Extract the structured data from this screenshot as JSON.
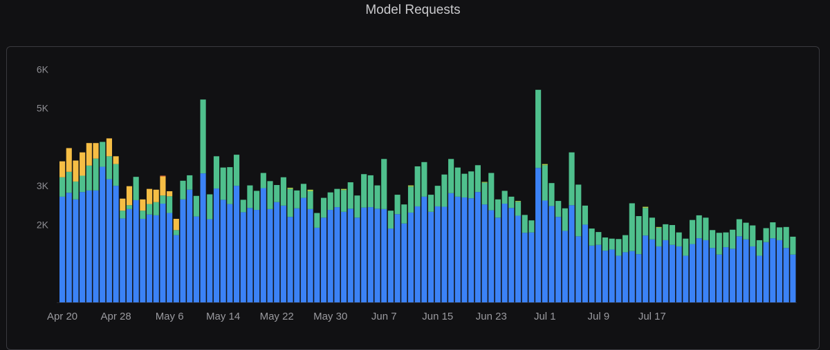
{
  "chart_data": {
    "type": "bar",
    "stacked": true,
    "title": "Model Requests",
    "ylim": [
      0,
      6200
    ],
    "yticks": [
      {
        "value": 2000,
        "label": "2K"
      },
      {
        "value": 3000,
        "label": "3K"
      },
      {
        "value": 5000,
        "label": "5K"
      },
      {
        "value": 6000,
        "label": "6K"
      }
    ],
    "xticks": [
      {
        "index": 0,
        "label": "Apr 20"
      },
      {
        "index": 8,
        "label": "Apr 28"
      },
      {
        "index": 16,
        "label": "May 6"
      },
      {
        "index": 24,
        "label": "May 14"
      },
      {
        "index": 32,
        "label": "May 22"
      },
      {
        "index": 40,
        "label": "May 30"
      },
      {
        "index": 48,
        "label": "Jun 7"
      },
      {
        "index": 56,
        "label": "Jun 15"
      },
      {
        "index": 64,
        "label": "Jun 23"
      },
      {
        "index": 72,
        "label": "Jul 1"
      },
      {
        "index": 80,
        "label": "Jul 9"
      },
      {
        "index": 88,
        "label": "Jul 17"
      }
    ],
    "grid": false,
    "legend": "none",
    "colors": [
      "#3b82f6",
      "#4fc08d",
      "#a8cc4a",
      "#f6be45",
      "#ef6f3c",
      "#ee6a6a",
      "#8e7bf0"
    ],
    "series": [
      {
        "values": [
          2720,
          2820,
          2650,
          2840,
          2880,
          2880,
          3490,
          3170,
          3000,
          2160,
          2400,
          2630,
          2150,
          2260,
          2240,
          2540,
          2300,
          1730,
          2650,
          2900,
          2210,
          3320,
          2140,
          2930,
          2640,
          2530,
          3000,
          2320,
          2430,
          2380,
          2940,
          2400,
          2580,
          2490,
          2200,
          2420,
          2690,
          2400,
          1920,
          2180,
          2380,
          2450,
          2330,
          2410,
          2180,
          2440,
          2450,
          2410,
          2400,
          1900,
          2270,
          2030,
          2310,
          2470,
          2720,
          2330,
          2470,
          2460,
          2810,
          2720,
          2700,
          2680,
          2840,
          2520,
          2370,
          2180,
          2540,
          2430,
          2230,
          1790,
          1800,
          3460,
          2620,
          2480,
          2200,
          1840,
          2500,
          1700,
          2000,
          1460,
          1480,
          1330,
          1360,
          1200,
          1290,
          1320,
          1240,
          1720,
          1620,
          1440,
          1600,
          1480,
          1440,
          1200,
          1500,
          1650,
          1600,
          1400,
          1230,
          1420,
          1380,
          1700,
          1620,
          1440,
          1200,
          1550,
          1650,
          1600,
          1400,
          1230
        ]
      },
      {
        "values": [
          500,
          540,
          460,
          420,
          640,
          820,
          640,
          590,
          560,
          200,
          100,
          600,
          210,
          270,
          340,
          210,
          430,
          130,
          480,
          370,
          530,
          1900,
          640,
          830,
          830,
          950,
          800,
          320,
          580,
          490,
          390,
          720,
          440,
          730,
          720,
          460,
          360,
          460,
          380,
          510,
          450,
          470,
          560,
          680,
          570,
          860,
          820,
          600,
          1290,
          460,
          500,
          490,
          670,
          1030,
          890,
          440,
          530,
          830,
          880,
          750,
          610,
          690,
          690,
          560,
          960,
          470,
          330,
          290,
          360,
          460,
          310,
          2010,
          910,
          590,
          410,
          580,
          1360,
          1330,
          490,
          440,
          330,
          340,
          280,
          430,
          440,
          1230,
          980,
          710,
          560,
          480,
          410,
          510,
          360,
          440,
          620,
          590,
          580,
          460,
          560,
          380,
          490,
          440,
          430,
          540,
          400,
          360,
          410,
          330,
          540,
          460
        ]
      },
      {
        "values": [
          0,
          0,
          0,
          0,
          0,
          0,
          0,
          0,
          0,
          0,
          0,
          0,
          0,
          0,
          0,
          0,
          0,
          0,
          0,
          0,
          0,
          0,
          0,
          0,
          0,
          0,
          0,
          0,
          0,
          0,
          0,
          0,
          0,
          0,
          30,
          0,
          0,
          40,
          0,
          0,
          0,
          0,
          30,
          0,
          0,
          0,
          0,
          0,
          0,
          0,
          0,
          0,
          30,
          0,
          0,
          0,
          0,
          0,
          0,
          0,
          0,
          0,
          0,
          20,
          0,
          0,
          0,
          0,
          20,
          0,
          0,
          0,
          30,
          0,
          0,
          0,
          0,
          0,
          0,
          0,
          0,
          0,
          0,
          0,
          0,
          0,
          0,
          30,
          0,
          20,
          0,
          0,
          0,
          0,
          0,
          0,
          0,
          0,
          0,
          0,
          0,
          0,
          0,
          0,
          0,
          0,
          0,
          0,
          0,
          0
        ]
      },
      {
        "values": [
          410,
          610,
          540,
          600,
          580,
          400,
          0,
          460,
          200,
          310,
          490,
          0,
          290,
          390,
          320,
          490,
          130,
          290,
          0,
          0,
          0,
          0,
          0,
          0,
          0,
          0,
          0,
          0,
          0,
          0,
          0,
          0,
          0,
          0,
          0,
          0,
          0,
          0,
          0,
          0,
          0,
          0,
          0,
          0,
          0,
          0,
          0,
          0,
          0,
          0,
          0,
          0,
          0,
          0,
          0,
          0,
          0,
          0,
          0,
          0,
          0,
          0,
          0,
          0,
          0,
          0,
          0,
          0,
          0,
          0,
          0,
          0,
          0,
          0,
          0,
          0,
          0,
          0,
          0,
          0,
          0,
          0,
          0,
          0,
          0,
          0,
          0,
          0,
          0,
          0,
          0,
          0,
          0,
          0,
          0,
          0,
          0,
          0,
          0,
          0,
          0,
          0,
          0,
          0,
          0,
          0,
          0,
          0,
          0,
          0
        ]
      },
      {
        "values": [
          0,
          0,
          0,
          0,
          0,
          0,
          0,
          0,
          0,
          0,
          0,
          0,
          0,
          0,
          0,
          20,
          0,
          0,
          0,
          0,
          0,
          0,
          0,
          0,
          0,
          0,
          0,
          0,
          0,
          0,
          0,
          0,
          0,
          0,
          0,
          0,
          0,
          0,
          0,
          0,
          0,
          0,
          0,
          0,
          0,
          0,
          0,
          0,
          0,
          0,
          0,
          0,
          0,
          0,
          0,
          0,
          0,
          0,
          0,
          0,
          0,
          0,
          0,
          0,
          0,
          0,
          0,
          0,
          0,
          0,
          0,
          0,
          0,
          0,
          0,
          0,
          0,
          0,
          0,
          0,
          0,
          0,
          0,
          0,
          0,
          0,
          0,
          0,
          0,
          0,
          0,
          0,
          0,
          0,
          0,
          0,
          0,
          0,
          0,
          0,
          0,
          0,
          0,
          0,
          0,
          0,
          0,
          0,
          0,
          0
        ]
      },
      {
        "values": [
          0,
          0,
          0,
          0,
          0,
          0,
          0,
          0,
          0,
          0,
          0,
          0,
          0,
          0,
          0,
          0,
          0,
          0,
          0,
          0,
          0,
          0,
          0,
          0,
          0,
          0,
          0,
          0,
          0,
          0,
          0,
          0,
          0,
          0,
          0,
          0,
          0,
          0,
          0,
          0,
          0,
          0,
          0,
          0,
          0,
          0,
          0,
          0,
          0,
          0,
          0,
          0,
          0,
          0,
          0,
          0,
          0,
          0,
          0,
          0,
          0,
          0,
          0,
          0,
          0,
          0,
          0,
          0,
          0,
          0,
          0,
          0,
          0,
          0,
          0,
          0,
          0,
          0,
          0,
          0,
          0,
          0,
          0,
          0,
          0,
          0,
          0,
          0,
          0,
          0,
          0,
          0,
          0,
          0,
          0,
          0,
          0,
          0,
          0,
          0,
          0,
          0,
          0,
          0,
          0,
          0,
          0,
          0,
          0,
          0
        ]
      },
      {
        "values": [
          0,
          0,
          0,
          0,
          0,
          0,
          0,
          0,
          0,
          0,
          0,
          0,
          0,
          0,
          0,
          0,
          0,
          0,
          0,
          0,
          0,
          0,
          0,
          0,
          0,
          0,
          0,
          0,
          0,
          0,
          0,
          0,
          0,
          0,
          0,
          0,
          0,
          0,
          0,
          0,
          0,
          0,
          0,
          0,
          0,
          0,
          0,
          0,
          0,
          0,
          0,
          0,
          0,
          0,
          0,
          0,
          0,
          0,
          0,
          0,
          0,
          0,
          0,
          0,
          0,
          0,
          0,
          0,
          0,
          0,
          0,
          0,
          0,
          0,
          0,
          0,
          0,
          0,
          0,
          0,
          0,
          0,
          0,
          0,
          0,
          0,
          0,
          0,
          0,
          0,
          0,
          0,
          0,
          0,
          0,
          0,
          0,
          0,
          0,
          0,
          0,
          0,
          0,
          0,
          0,
          0,
          0,
          0,
          0,
          0
        ]
      }
    ]
  }
}
